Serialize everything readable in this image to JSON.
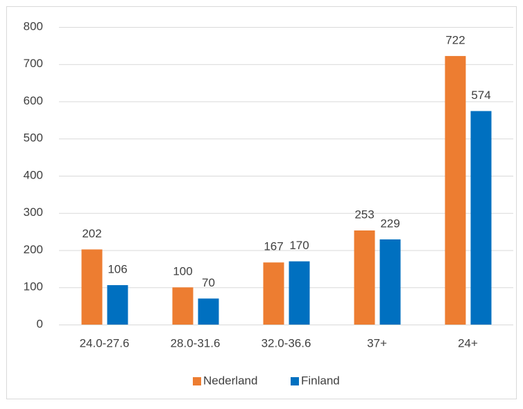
{
  "chart_data": {
    "type": "bar",
    "categories": [
      "24.0-27.6",
      "28.0-31.6",
      "32.0-36.6",
      "37+",
      "24+"
    ],
    "series": [
      {
        "name": "Nederland",
        "color": "#ed7d31",
        "values": [
          202,
          100,
          167,
          253,
          722
        ]
      },
      {
        "name": "Finland",
        "color": "#0070c0",
        "values": [
          106,
          70,
          170,
          229,
          574
        ]
      }
    ],
    "ylim": [
      0,
      800
    ],
    "yticks": [
      0,
      100,
      200,
      300,
      400,
      500,
      600,
      700,
      800
    ],
    "grid": true,
    "legend": "bottom"
  }
}
